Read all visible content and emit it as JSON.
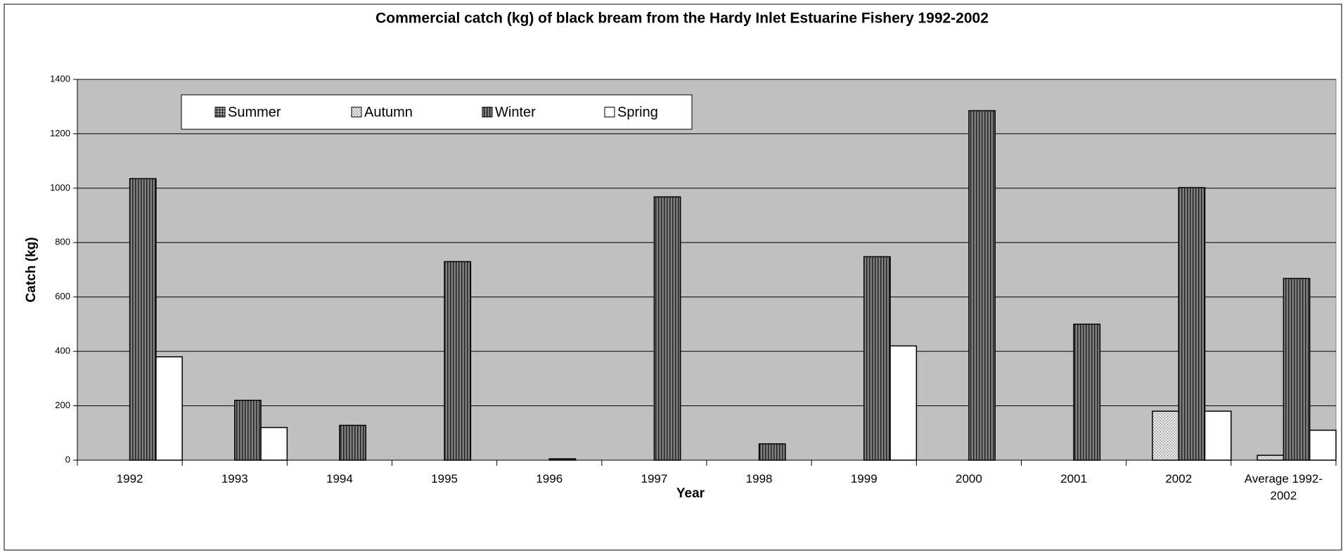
{
  "chart_data": {
    "type": "bar",
    "title": "Commercial catch (kg) of black bream from the Hardy Inlet Estuarine Fishery 1992-2002",
    "x_label": "Year",
    "y_label": "Catch (kg)",
    "categories": [
      "1992",
      "1993",
      "1994",
      "1995",
      "1996",
      "1997",
      "1998",
      "1999",
      "2000",
      "2001",
      "2002",
      "Average 1992-2002"
    ],
    "series": [
      {
        "name": "Summer",
        "color": "#a0a0a0",
        "pattern": "grid",
        "values": [
          0,
          0,
          0,
          0,
          0,
          0,
          0,
          0,
          0,
          0,
          0,
          0
        ]
      },
      {
        "name": "Autumn",
        "color": "#e0e0e0",
        "pattern": "dots",
        "values": [
          0,
          0,
          0,
          0,
          0,
          0,
          0,
          0,
          0,
          0,
          180,
          18
        ]
      },
      {
        "name": "Winter",
        "color": "#808080",
        "pattern": "vlines",
        "values": [
          1035,
          220,
          128,
          730,
          5,
          968,
          60,
          748,
          1285,
          500,
          1002,
          668
        ]
      },
      {
        "name": "Spring",
        "color": "#ffffff",
        "pattern": "solid",
        "values": [
          380,
          120,
          0,
          0,
          0,
          0,
          0,
          420,
          0,
          0,
          180,
          110
        ]
      }
    ],
    "ylim": [
      0,
      1400
    ],
    "yticks": [
      0,
      200,
      400,
      600,
      800,
      1000,
      1200,
      1400
    ],
    "grid": true,
    "plot_background": "#c0c0c0",
    "legend": "top"
  }
}
